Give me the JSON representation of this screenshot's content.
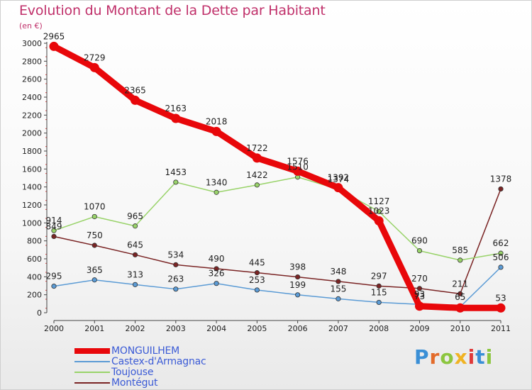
{
  "title": "Evolution du Montant de la Dette par Habitant",
  "unit_label": "(en €)",
  "logo": {
    "letters": [
      "P",
      "r",
      "o",
      "x",
      "i",
      "t",
      "i"
    ],
    "colors": [
      "#3a8fd6",
      "#e36b2a",
      "#8cc63f",
      "#f0b323",
      "#e03a3a",
      "#3a8fd6",
      "#8cc63f"
    ]
  },
  "chart_data": {
    "type": "line",
    "title": "Evolution du Montant de la Dette par Habitant",
    "ylabel": "(en €)",
    "xlabel": "",
    "x": [
      "2000",
      "2001",
      "2002",
      "2003",
      "2004",
      "2005",
      "2006",
      "2007",
      "2008",
      "2009",
      "2010",
      "2011"
    ],
    "ylim": [
      0,
      3000
    ],
    "yticks": [
      0,
      200,
      400,
      600,
      800,
      1000,
      1200,
      1400,
      1600,
      1800,
      2000,
      2200,
      2400,
      2600,
      2800,
      3000
    ],
    "grid": false,
    "legend_position": "bottom-left",
    "series": [
      {
        "name": "Montégut",
        "color": "#7a2424",
        "values": [
          849,
          750,
          645,
          534,
          490,
          445,
          398,
          348,
          297,
          270,
          211,
          1378
        ],
        "labels": [
          "849",
          "750",
          "645",
          "534",
          "490",
          "445",
          "398",
          "348",
          "297",
          "270",
          "211",
          "1378"
        ]
      },
      {
        "name": "Toujouse",
        "color": "#99d36a",
        "values": [
          914,
          1070,
          965,
          1453,
          1340,
          1422,
          1510,
          1374,
          1127,
          690,
          585,
          662
        ],
        "labels": [
          "914",
          "1070",
          "965",
          "1453",
          "1340",
          "1422",
          "1510",
          "1374",
          "1127",
          "690",
          "585",
          "662"
        ]
      },
      {
        "name": "Castex-d'Armagnac",
        "color": "#5b9bd5",
        "values": [
          295,
          365,
          313,
          263,
          326,
          253,
          199,
          155,
          115,
          93,
          65,
          506
        ],
        "labels": [
          "295",
          "365",
          "313",
          "263",
          "326",
          "253",
          "199",
          "155",
          "115",
          "93",
          "65",
          "506"
        ]
      },
      {
        "name": "MONGUILHEM",
        "color": "#e8070a",
        "values": [
          2965,
          2729,
          2365,
          2163,
          2018,
          1722,
          1576,
          1392,
          1023,
          73,
          53,
          53
        ],
        "labels": [
          "2965",
          "2729",
          "2365",
          "2163",
          "2018",
          "1722",
          "1576",
          "1392",
          "1023",
          "73",
          "",
          "53"
        ]
      }
    ],
    "legend_order": [
      "MONGUILHEM",
      "Castex-d'Armagnac",
      "Toujouse",
      "Montégut"
    ]
  }
}
